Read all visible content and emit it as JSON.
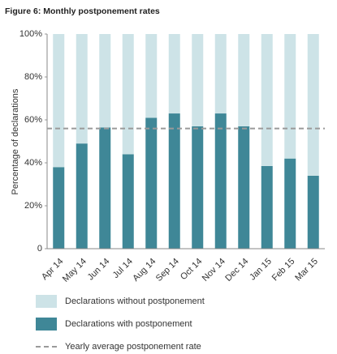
{
  "chart_data": {
    "type": "bar",
    "stacked": true,
    "title": "Figure 6: Monthly postponement rates",
    "y_label": "Percentage of declarations",
    "categories": [
      "Apr 14",
      "May 14",
      "Jun 14",
      "Jul 14",
      "Aug 14",
      "Sep 14",
      "Oct 14",
      "Nov 14",
      "Dec 14",
      "Jan 15",
      "Feb 15",
      "Mar 15"
    ],
    "series": [
      {
        "name": "Declarations with postponement",
        "color": "#3f8797",
        "values": [
          38,
          49,
          56.5,
          44,
          61,
          63,
          57,
          63,
          57,
          38.5,
          42,
          34
        ]
      },
      {
        "name": "Declarations without postponement",
        "color": "#cde3e7",
        "values": [
          62,
          51,
          43.5,
          56,
          39,
          37,
          43,
          37,
          43,
          61.5,
          58,
          66
        ]
      }
    ],
    "average": {
      "name": "Yearly average postponement rate",
      "value": 56,
      "color": "#9a9a9a"
    },
    "ylim": [
      0,
      100
    ],
    "yticks": [
      0,
      {
        "value": 20,
        "label": "20%"
      },
      {
        "value": 40,
        "label": "40%"
      },
      {
        "value": 60,
        "label": "60%"
      },
      {
        "value": 80,
        "label": "80%"
      },
      {
        "value": 100,
        "label": "100%"
      }
    ]
  }
}
